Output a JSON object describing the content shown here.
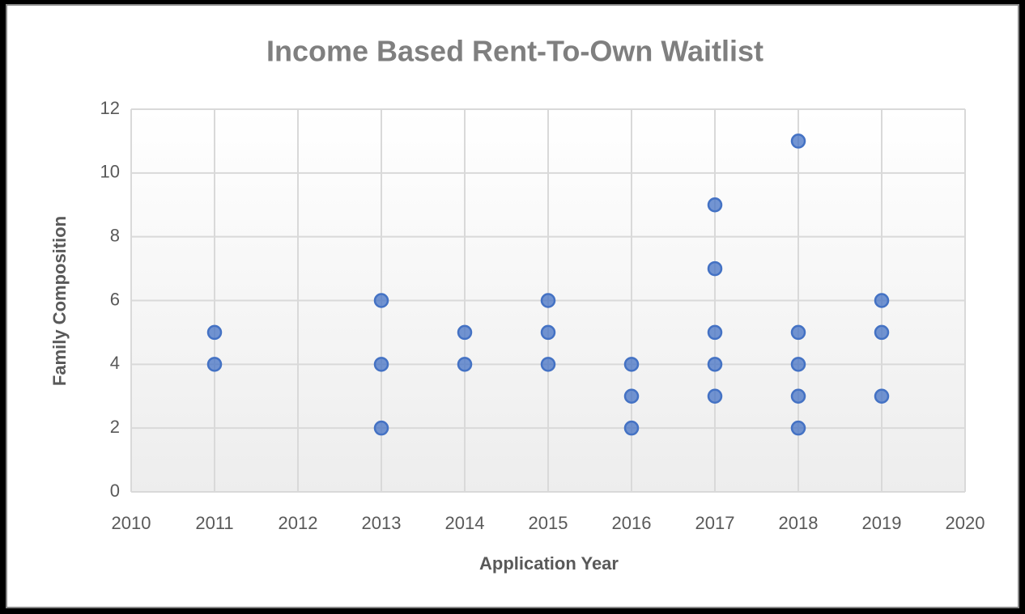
{
  "chart_data": {
    "type": "scatter",
    "title": "Income Based Rent-To-Own Waitlist",
    "x_label": "Application Year",
    "y_label": "Family Composition",
    "x": [
      2011,
      2011,
      2013,
      2013,
      2013,
      2014,
      2014,
      2015,
      2015,
      2015,
      2016,
      2016,
      2016,
      2017,
      2017,
      2017,
      2017,
      2017,
      2018,
      2018,
      2018,
      2018,
      2018,
      2019,
      2019,
      2019
    ],
    "values": [
      5,
      4,
      6,
      4,
      2,
      5,
      4,
      6,
      5,
      4,
      4,
      3,
      2,
      9,
      7,
      5,
      4,
      3,
      11,
      5,
      4,
      3,
      2,
      6,
      5,
      3
    ],
    "color": "#4472c4",
    "xlim": [
      2010,
      2020
    ],
    "xticks": [
      2010,
      2011,
      2012,
      2013,
      2014,
      2015,
      2016,
      2017,
      2018,
      2019,
      2020
    ],
    "ylim": [
      0,
      12
    ],
    "yticks": [
      0,
      2,
      4,
      6,
      8,
      10,
      12
    ],
    "grid": true
  }
}
